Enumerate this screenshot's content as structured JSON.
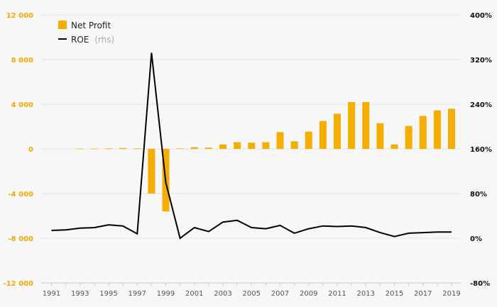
{
  "chart_data": {
    "type": "bar+line",
    "title": "",
    "colors": {
      "bar": "#f5ad00",
      "line": "#000000",
      "left_ticks": "#f5a800",
      "right_ticks": "#111111",
      "grid": "#e3e3e3"
    },
    "x": [
      1991,
      1992,
      1993,
      1994,
      1995,
      1996,
      1997,
      1998,
      1999,
      2000,
      2001,
      2002,
      2003,
      2004,
      2005,
      2006,
      2007,
      2008,
      2009,
      2010,
      2011,
      2012,
      2013,
      2014,
      2015,
      2016,
      2017,
      2018,
      2019
    ],
    "x_tick_labels": [
      "1991",
      "1993",
      "1995",
      "1997",
      "1999",
      "2001",
      "2003",
      "2005",
      "2007",
      "2009",
      "2011",
      "2013",
      "2015",
      "2017",
      "2019"
    ],
    "y_left": {
      "ylim": [
        -12000,
        12000
      ],
      "ticks": [
        12000,
        8000,
        4000,
        0,
        -4000,
        -8000,
        -12000
      ],
      "tick_labels": [
        "12 000",
        "8 000",
        "4 000",
        "0",
        "-4 000",
        "-8 000",
        "-12 000"
      ]
    },
    "y_right": {
      "ylim": [
        -80,
        400
      ],
      "ticks": [
        400,
        320,
        240,
        160,
        80,
        0,
        -80
      ],
      "tick_labels": [
        "400%",
        "320%",
        "240%",
        "160%",
        "80%",
        "0%",
        "-80%"
      ]
    },
    "legend": [
      {
        "name": "Net Profit",
        "note": ""
      },
      {
        "name": "ROE",
        "note": "(rhs)"
      }
    ],
    "series": [
      {
        "name": "Net Profit",
        "type": "bar",
        "axis": "left",
        "values": [
          0,
          0,
          20,
          30,
          40,
          80,
          40,
          -4000,
          -5600,
          40,
          150,
          110,
          400,
          600,
          550,
          600,
          1500,
          680,
          1550,
          2500,
          3150,
          4200,
          4200,
          2300,
          400,
          2050,
          2950,
          3450,
          3600
        ]
      },
      {
        "name": "ROE",
        "type": "line",
        "axis": "right",
        "values": [
          14,
          15,
          18,
          19,
          24,
          22,
          8,
          332,
          100,
          0,
          19,
          12,
          29,
          32,
          19,
          17,
          23,
          9,
          17,
          22,
          21,
          22,
          19,
          10,
          3,
          9,
          10,
          11,
          11
        ]
      }
    ]
  }
}
